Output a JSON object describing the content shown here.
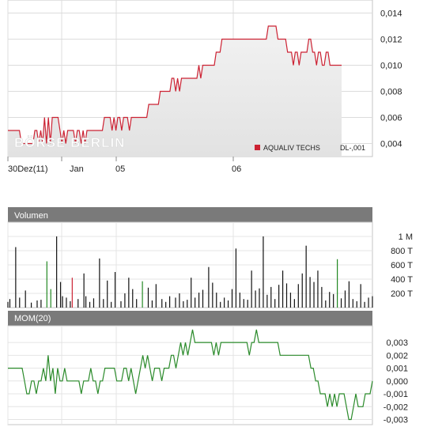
{
  "chart_data": [
    {
      "id": "price",
      "type": "line",
      "watermark": "BÖRSE BERLIN",
      "x_tick_labels": [
        "30Dez(11)",
        "Jan",
        "05",
        "06"
      ],
      "y_tick_labels": [
        "0,004",
        "0,006",
        "0,008",
        "0,010",
        "0,012",
        "0,014"
      ],
      "ylim": [
        0.003,
        0.015
      ],
      "grid": true,
      "legend": {
        "position": "bottom-right",
        "label": "AQUALIV TECHS",
        "currency": "DL-,001",
        "color": "#cc2233"
      },
      "series": [
        {
          "name": "AQUALIV TECHS",
          "color": "#cc2233",
          "values": [
            0.005,
            0.005,
            0.005,
            0.005,
            0.005,
            0.005,
            0.005,
            0.004,
            0.004,
            0.004,
            0.004,
            0.004,
            0.004,
            0.004,
            0.005,
            0.005,
            0.004,
            0.005,
            0.004,
            0.006,
            0.004,
            0.006,
            0.004,
            0.006,
            0.006,
            0.006,
            0.006,
            0.005,
            0.004,
            0.005,
            0.004,
            0.005,
            0.005,
            0.005,
            0.005,
            0.004,
            0.005,
            0.005,
            0.004,
            0.005,
            0.004,
            0.005,
            0.005,
            0.005,
            0.005,
            0.005,
            0.005,
            0.005,
            0.005,
            0.005,
            0.006,
            0.006,
            0.006,
            0.006,
            0.005,
            0.006,
            0.005,
            0.006,
            0.006,
            0.005,
            0.006,
            0.006,
            0.006,
            0.005,
            0.006,
            0.006,
            0.006,
            0.006,
            0.006,
            0.006,
            0.006,
            0.006,
            0.006,
            0.007,
            0.007,
            0.007,
            0.007,
            0.007,
            0.007,
            0.008,
            0.008,
            0.008,
            0.008,
            0.008,
            0.008,
            0.009,
            0.009,
            0.008,
            0.009,
            0.008,
            0.009,
            0.009,
            0.009,
            0.009,
            0.009,
            0.009,
            0.009,
            0.009,
            0.009,
            0.01,
            0.009,
            0.01,
            0.01,
            0.01,
            0.01,
            0.01,
            0.01,
            0.01,
            0.011,
            0.011,
            0.011,
            0.012,
            0.012,
            0.012,
            0.012,
            0.012,
            0.012,
            0.012,
            0.012,
            0.012,
            0.012,
            0.012,
            0.012,
            0.012,
            0.012,
            0.012,
            0.012,
            0.012,
            0.012,
            0.012,
            0.012,
            0.012,
            0.012,
            0.012,
            0.012,
            0.013,
            0.013,
            0.013,
            0.013,
            0.013,
            0.012,
            0.012,
            0.012,
            0.012,
            0.012,
            0.011,
            0.011,
            0.011,
            0.01,
            0.011,
            0.011,
            0.01,
            0.011,
            0.011,
            0.011,
            0.011,
            0.012,
            0.012,
            0.011,
            0.011,
            0.01,
            0.011,
            0.011,
            0.01,
            0.01,
            0.011,
            0.011,
            0.01,
            0.01,
            0.01,
            0.01,
            0.01,
            0.01,
            0.01
          ]
        }
      ]
    },
    {
      "id": "volume",
      "type": "bar",
      "title": "Volumen",
      "y_tick_labels": [
        "200 T",
        "400 T",
        "600 T",
        "800 T",
        "1 M"
      ],
      "y_tick_values": [
        200000,
        400000,
        600000,
        800000,
        1000000
      ],
      "ylim": [
        0,
        1200000
      ],
      "grid": true,
      "colors": {
        "up": "#228822",
        "down": "#cc2233",
        "neutral": "#111111"
      },
      "bars": [
        {
          "x": 0,
          "v": 80000,
          "c": "neutral"
        },
        {
          "x": 1,
          "v": 120000,
          "c": "neutral"
        },
        {
          "x": 4,
          "v": 850000,
          "c": "neutral"
        },
        {
          "x": 6,
          "v": 140000,
          "c": "neutral"
        },
        {
          "x": 9,
          "v": 240000,
          "c": "neutral"
        },
        {
          "x": 12,
          "v": 70000,
          "c": "neutral"
        },
        {
          "x": 15,
          "v": 100000,
          "c": "neutral"
        },
        {
          "x": 17,
          "v": 110000,
          "c": "neutral"
        },
        {
          "x": 20,
          "v": 650000,
          "c": "up"
        },
        {
          "x": 22,
          "v": 260000,
          "c": "up"
        },
        {
          "x": 25,
          "v": 1000000,
          "c": "neutral"
        },
        {
          "x": 27,
          "v": 360000,
          "c": "neutral"
        },
        {
          "x": 28,
          "v": 160000,
          "c": "neutral"
        },
        {
          "x": 30,
          "v": 140000,
          "c": "neutral"
        },
        {
          "x": 32,
          "v": 90000,
          "c": "neutral"
        },
        {
          "x": 33,
          "v": 420000,
          "c": "down"
        },
        {
          "x": 36,
          "v": 120000,
          "c": "neutral"
        },
        {
          "x": 39,
          "v": 480000,
          "c": "neutral"
        },
        {
          "x": 40,
          "v": 160000,
          "c": "neutral"
        },
        {
          "x": 42,
          "v": 80000,
          "c": "neutral"
        },
        {
          "x": 44,
          "v": 130000,
          "c": "neutral"
        },
        {
          "x": 47,
          "v": 690000,
          "c": "neutral"
        },
        {
          "x": 49,
          "v": 120000,
          "c": "neutral"
        },
        {
          "x": 51,
          "v": 380000,
          "c": "neutral"
        },
        {
          "x": 53,
          "v": 80000,
          "c": "neutral"
        },
        {
          "x": 55,
          "v": 500000,
          "c": "neutral"
        },
        {
          "x": 58,
          "v": 90000,
          "c": "neutral"
        },
        {
          "x": 60,
          "v": 200000,
          "c": "neutral"
        },
        {
          "x": 62,
          "v": 420000,
          "c": "neutral"
        },
        {
          "x": 64,
          "v": 260000,
          "c": "neutral"
        },
        {
          "x": 66,
          "v": 120000,
          "c": "neutral"
        },
        {
          "x": 69,
          "v": 370000,
          "c": "up"
        },
        {
          "x": 72,
          "v": 280000,
          "c": "neutral"
        },
        {
          "x": 74,
          "v": 100000,
          "c": "neutral"
        },
        {
          "x": 76,
          "v": 330000,
          "c": "neutral"
        },
        {
          "x": 79,
          "v": 120000,
          "c": "neutral"
        },
        {
          "x": 81,
          "v": 80000,
          "c": "neutral"
        },
        {
          "x": 83,
          "v": 160000,
          "c": "neutral"
        },
        {
          "x": 86,
          "v": 140000,
          "c": "neutral"
        },
        {
          "x": 88,
          "v": 200000,
          "c": "neutral"
        },
        {
          "x": 90,
          "v": 90000,
          "c": "neutral"
        },
        {
          "x": 92,
          "v": 110000,
          "c": "neutral"
        },
        {
          "x": 94,
          "v": 420000,
          "c": "neutral"
        },
        {
          "x": 96,
          "v": 140000,
          "c": "neutral"
        },
        {
          "x": 98,
          "v": 210000,
          "c": "neutral"
        },
        {
          "x": 100,
          "v": 250000,
          "c": "neutral"
        },
        {
          "x": 103,
          "v": 570000,
          "c": "neutral"
        },
        {
          "x": 105,
          "v": 350000,
          "c": "neutral"
        },
        {
          "x": 107,
          "v": 210000,
          "c": "neutral"
        },
        {
          "x": 109,
          "v": 80000,
          "c": "neutral"
        },
        {
          "x": 111,
          "v": 140000,
          "c": "neutral"
        },
        {
          "x": 113,
          "v": 100000,
          "c": "neutral"
        },
        {
          "x": 115,
          "v": 260000,
          "c": "neutral"
        },
        {
          "x": 117,
          "v": 830000,
          "c": "neutral"
        },
        {
          "x": 119,
          "v": 210000,
          "c": "neutral"
        },
        {
          "x": 121,
          "v": 120000,
          "c": "neutral"
        },
        {
          "x": 123,
          "v": 110000,
          "c": "neutral"
        },
        {
          "x": 125,
          "v": 520000,
          "c": "neutral"
        },
        {
          "x": 127,
          "v": 240000,
          "c": "neutral"
        },
        {
          "x": 129,
          "v": 270000,
          "c": "neutral"
        },
        {
          "x": 131,
          "v": 1000000,
          "c": "neutral"
        },
        {
          "x": 133,
          "v": 180000,
          "c": "neutral"
        },
        {
          "x": 135,
          "v": 290000,
          "c": "neutral"
        },
        {
          "x": 137,
          "v": 120000,
          "c": "neutral"
        },
        {
          "x": 139,
          "v": 320000,
          "c": "neutral"
        },
        {
          "x": 141,
          "v": 520000,
          "c": "neutral"
        },
        {
          "x": 143,
          "v": 340000,
          "c": "neutral"
        },
        {
          "x": 145,
          "v": 210000,
          "c": "neutral"
        },
        {
          "x": 147,
          "v": 120000,
          "c": "neutral"
        },
        {
          "x": 149,
          "v": 330000,
          "c": "neutral"
        },
        {
          "x": 151,
          "v": 480000,
          "c": "neutral"
        },
        {
          "x": 153,
          "v": 870000,
          "c": "neutral"
        },
        {
          "x": 155,
          "v": 430000,
          "c": "neutral"
        },
        {
          "x": 157,
          "v": 360000,
          "c": "neutral"
        },
        {
          "x": 159,
          "v": 520000,
          "c": "neutral"
        },
        {
          "x": 161,
          "v": 290000,
          "c": "neutral"
        },
        {
          "x": 163,
          "v": 100000,
          "c": "neutral"
        },
        {
          "x": 165,
          "v": 220000,
          "c": "neutral"
        },
        {
          "x": 167,
          "v": 190000,
          "c": "neutral"
        },
        {
          "x": 169,
          "v": 680000,
          "c": "up"
        },
        {
          "x": 171,
          "v": 130000,
          "c": "neutral"
        },
        {
          "x": 173,
          "v": 240000,
          "c": "neutral"
        },
        {
          "x": 175,
          "v": 370000,
          "c": "neutral"
        },
        {
          "x": 177,
          "v": 120000,
          "c": "neutral"
        },
        {
          "x": 179,
          "v": 90000,
          "c": "neutral"
        },
        {
          "x": 181,
          "v": 330000,
          "c": "neutral"
        },
        {
          "x": 183,
          "v": 80000,
          "c": "neutral"
        },
        {
          "x": 185,
          "v": 140000,
          "c": "neutral"
        },
        {
          "x": 187,
          "v": 160000,
          "c": "neutral"
        }
      ]
    },
    {
      "id": "momentum",
      "type": "line",
      "title": "MOM(20)",
      "y_tick_labels": [
        "0,003",
        "0,002",
        "0,001",
        "0,000",
        "-0,001",
        "-0,002",
        "-0,003"
      ],
      "y_tick_values": [
        0.003,
        0.002,
        0.001,
        0.0,
        -0.001,
        -0.002,
        -0.003
      ],
      "ylim": [
        -0.0034,
        0.0043
      ],
      "grid": true,
      "series": [
        {
          "name": "MOM(20)",
          "color": "#2a8a2a",
          "values": [
            0.001,
            0.001,
            0.001,
            0.001,
            0.001,
            0.001,
            0.001,
            0.0,
            -0.001,
            -0.001,
            0.0,
            0.0,
            -0.001,
            0.0,
            0.0,
            0.001,
            0.0,
            0.002,
            0.0,
            0.001,
            -0.001,
            0.001,
            0.0,
            0.0,
            0.001,
            0.0,
            0.0,
            0.0,
            0.0,
            0.0,
            0.0,
            -0.001,
            0.0,
            0.0,
            0.0,
            0.001,
            0.0,
            0.0,
            -0.001,
            0.0,
            0.0,
            0.001,
            0.001,
            0.001,
            0.001,
            0.001,
            0.0,
            0.0,
            0.0,
            0.001,
            0.001,
            0.0,
            0.001,
            0.0,
            -0.001,
            0.0,
            0.001,
            0.002,
            0.001,
            0.002,
            0.001,
            0.0,
            0.001,
            0.001,
            0.001,
            0.0,
            0.001,
            0.001,
            0.001,
            0.002,
            0.002,
            0.001,
            0.002,
            0.003,
            0.002,
            0.003,
            0.002,
            0.003,
            0.004,
            0.003,
            0.003,
            0.003,
            0.003,
            0.003,
            0.003,
            0.003,
            0.003,
            0.002,
            0.003,
            0.002,
            0.003,
            0.003,
            0.003,
            0.003,
            0.003,
            0.003,
            0.003,
            0.003,
            0.003,
            0.003,
            0.003,
            0.003,
            0.002,
            0.003,
            0.003,
            0.004,
            0.003,
            0.003,
            0.003,
            0.003,
            0.003,
            0.003,
            0.003,
            0.003,
            0.003,
            0.002,
            0.002,
            0.002,
            0.002,
            0.002,
            0.002,
            0.002,
            0.002,
            0.002,
            0.002,
            0.002,
            0.002,
            0.002,
            0.001,
            0.001,
            0.0,
            0.0,
            -0.001,
            -0.001,
            -0.001,
            -0.002,
            -0.001,
            -0.002,
            -0.001,
            -0.002,
            -0.001,
            -0.001,
            -0.001,
            -0.002,
            -0.003,
            -0.003,
            -0.002,
            -0.001,
            -0.002,
            -0.002,
            -0.002,
            -0.001,
            -0.001,
            -0.001,
            0.0
          ]
        }
      ]
    }
  ]
}
